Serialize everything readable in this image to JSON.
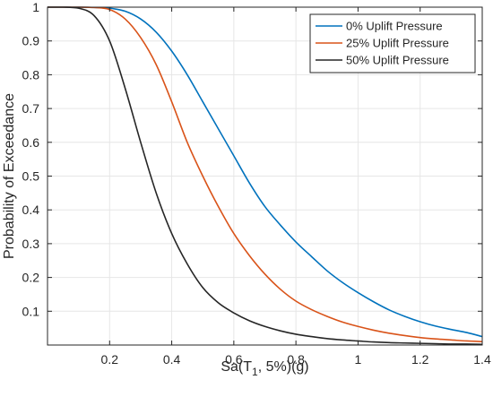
{
  "chart_data": {
    "type": "line",
    "xlabel": {
      "main": "Sa(T",
      "sub": "1",
      "rest": ", 5%)(g)"
    },
    "ylabel": "Probability of Exceedance",
    "xlim": [
      0,
      1.4
    ],
    "ylim": [
      0,
      1
    ],
    "xticks": [
      0.2,
      0.4,
      0.6,
      0.8,
      1,
      1.2,
      1.4
    ],
    "xtick_labels": [
      "0.2",
      "0.4",
      "0.6",
      "0.8",
      "1",
      "1.2",
      "1.4"
    ],
    "yticks": [
      0.1,
      0.2,
      0.3,
      0.4,
      0.5,
      0.6,
      0.7,
      0.8,
      0.9,
      1
    ],
    "ytick_labels": [
      "0.1",
      "0.2",
      "0.3",
      "0.4",
      "0.5",
      "0.6",
      "0.7",
      "0.8",
      "0.9",
      "1"
    ],
    "grid": true,
    "legend_position": "top-right",
    "x": [
      0,
      0.05,
      0.1,
      0.15,
      0.2,
      0.25,
      0.3,
      0.35,
      0.4,
      0.45,
      0.5,
      0.55,
      0.6,
      0.65,
      0.7,
      0.75,
      0.8,
      0.85,
      0.9,
      0.95,
      1.0,
      1.05,
      1.1,
      1.15,
      1.2,
      1.25,
      1.3,
      1.35,
      1.4
    ],
    "series": [
      {
        "name": "0% Uplift Pressure",
        "color": "#0072BD",
        "values": [
          1.0,
          1.0,
          1.0,
          0.999,
          0.997,
          0.988,
          0.965,
          0.926,
          0.87,
          0.8,
          0.72,
          0.64,
          0.56,
          0.48,
          0.41,
          0.355,
          0.305,
          0.262,
          0.22,
          0.185,
          0.155,
          0.128,
          0.104,
          0.085,
          0.069,
          0.056,
          0.046,
          0.037,
          0.025
        ]
      },
      {
        "name": "25% Uplift Pressure",
        "color": "#D95319",
        "values": [
          1.0,
          1.0,
          1.0,
          0.999,
          0.993,
          0.965,
          0.91,
          0.83,
          0.72,
          0.6,
          0.5,
          0.41,
          0.33,
          0.265,
          0.21,
          0.165,
          0.13,
          0.105,
          0.085,
          0.068,
          0.055,
          0.044,
          0.035,
          0.028,
          0.022,
          0.018,
          0.015,
          0.012,
          0.01
        ]
      },
      {
        "name": "50% Uplift Pressure",
        "color": "#262626",
        "values": [
          1.0,
          1.0,
          0.997,
          0.975,
          0.9,
          0.76,
          0.6,
          0.45,
          0.33,
          0.24,
          0.17,
          0.125,
          0.095,
          0.072,
          0.055,
          0.042,
          0.032,
          0.025,
          0.019,
          0.015,
          0.012,
          0.009,
          0.007,
          0.006,
          0.005,
          0.004,
          0.003,
          0.003,
          0.002
        ]
      }
    ]
  }
}
